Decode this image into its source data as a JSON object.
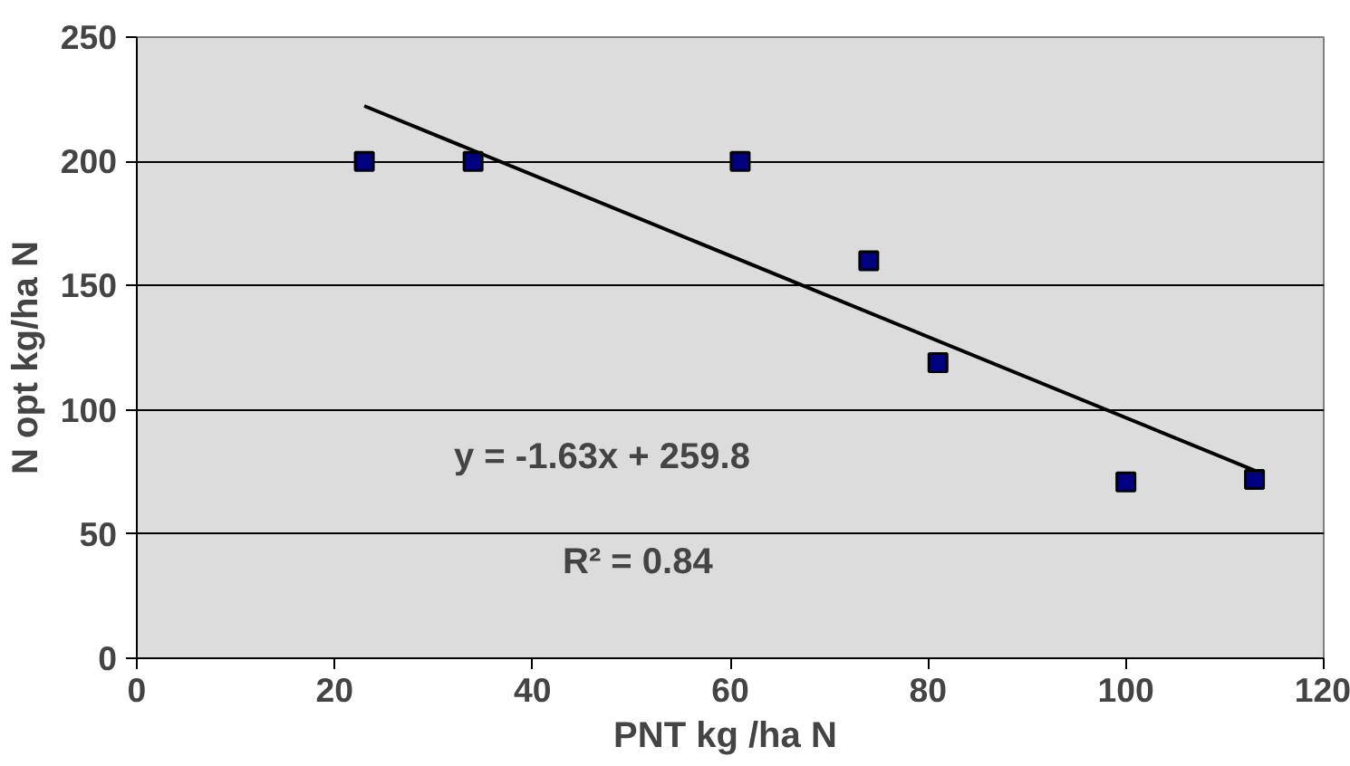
{
  "chart_data": {
    "type": "scatter",
    "xlabel": "PNT  kg /ha N",
    "ylabel": "N opt  kg/ha  N",
    "xlim": [
      0,
      120
    ],
    "xticks": [
      0,
      20,
      40,
      60,
      80,
      100,
      120
    ],
    "ylim": [
      0,
      250
    ],
    "yticks": [
      0,
      50,
      100,
      150,
      200,
      250
    ],
    "grid": "y",
    "series": [
      {
        "marker": "square",
        "color": "#000080",
        "x": [
          23,
          34,
          61,
          74,
          81,
          100,
          113
        ],
        "values": [
          200,
          200,
          200,
          160,
          119,
          71,
          72
        ]
      },
      {
        "type": "line",
        "color": "#000000",
        "x": [
          23,
          113
        ],
        "values": [
          222.3,
          75.6
        ],
        "line_style": "solid"
      }
    ],
    "annotations": [
      "y = -1.63x + 259.8",
      "R² = 0.84"
    ]
  }
}
